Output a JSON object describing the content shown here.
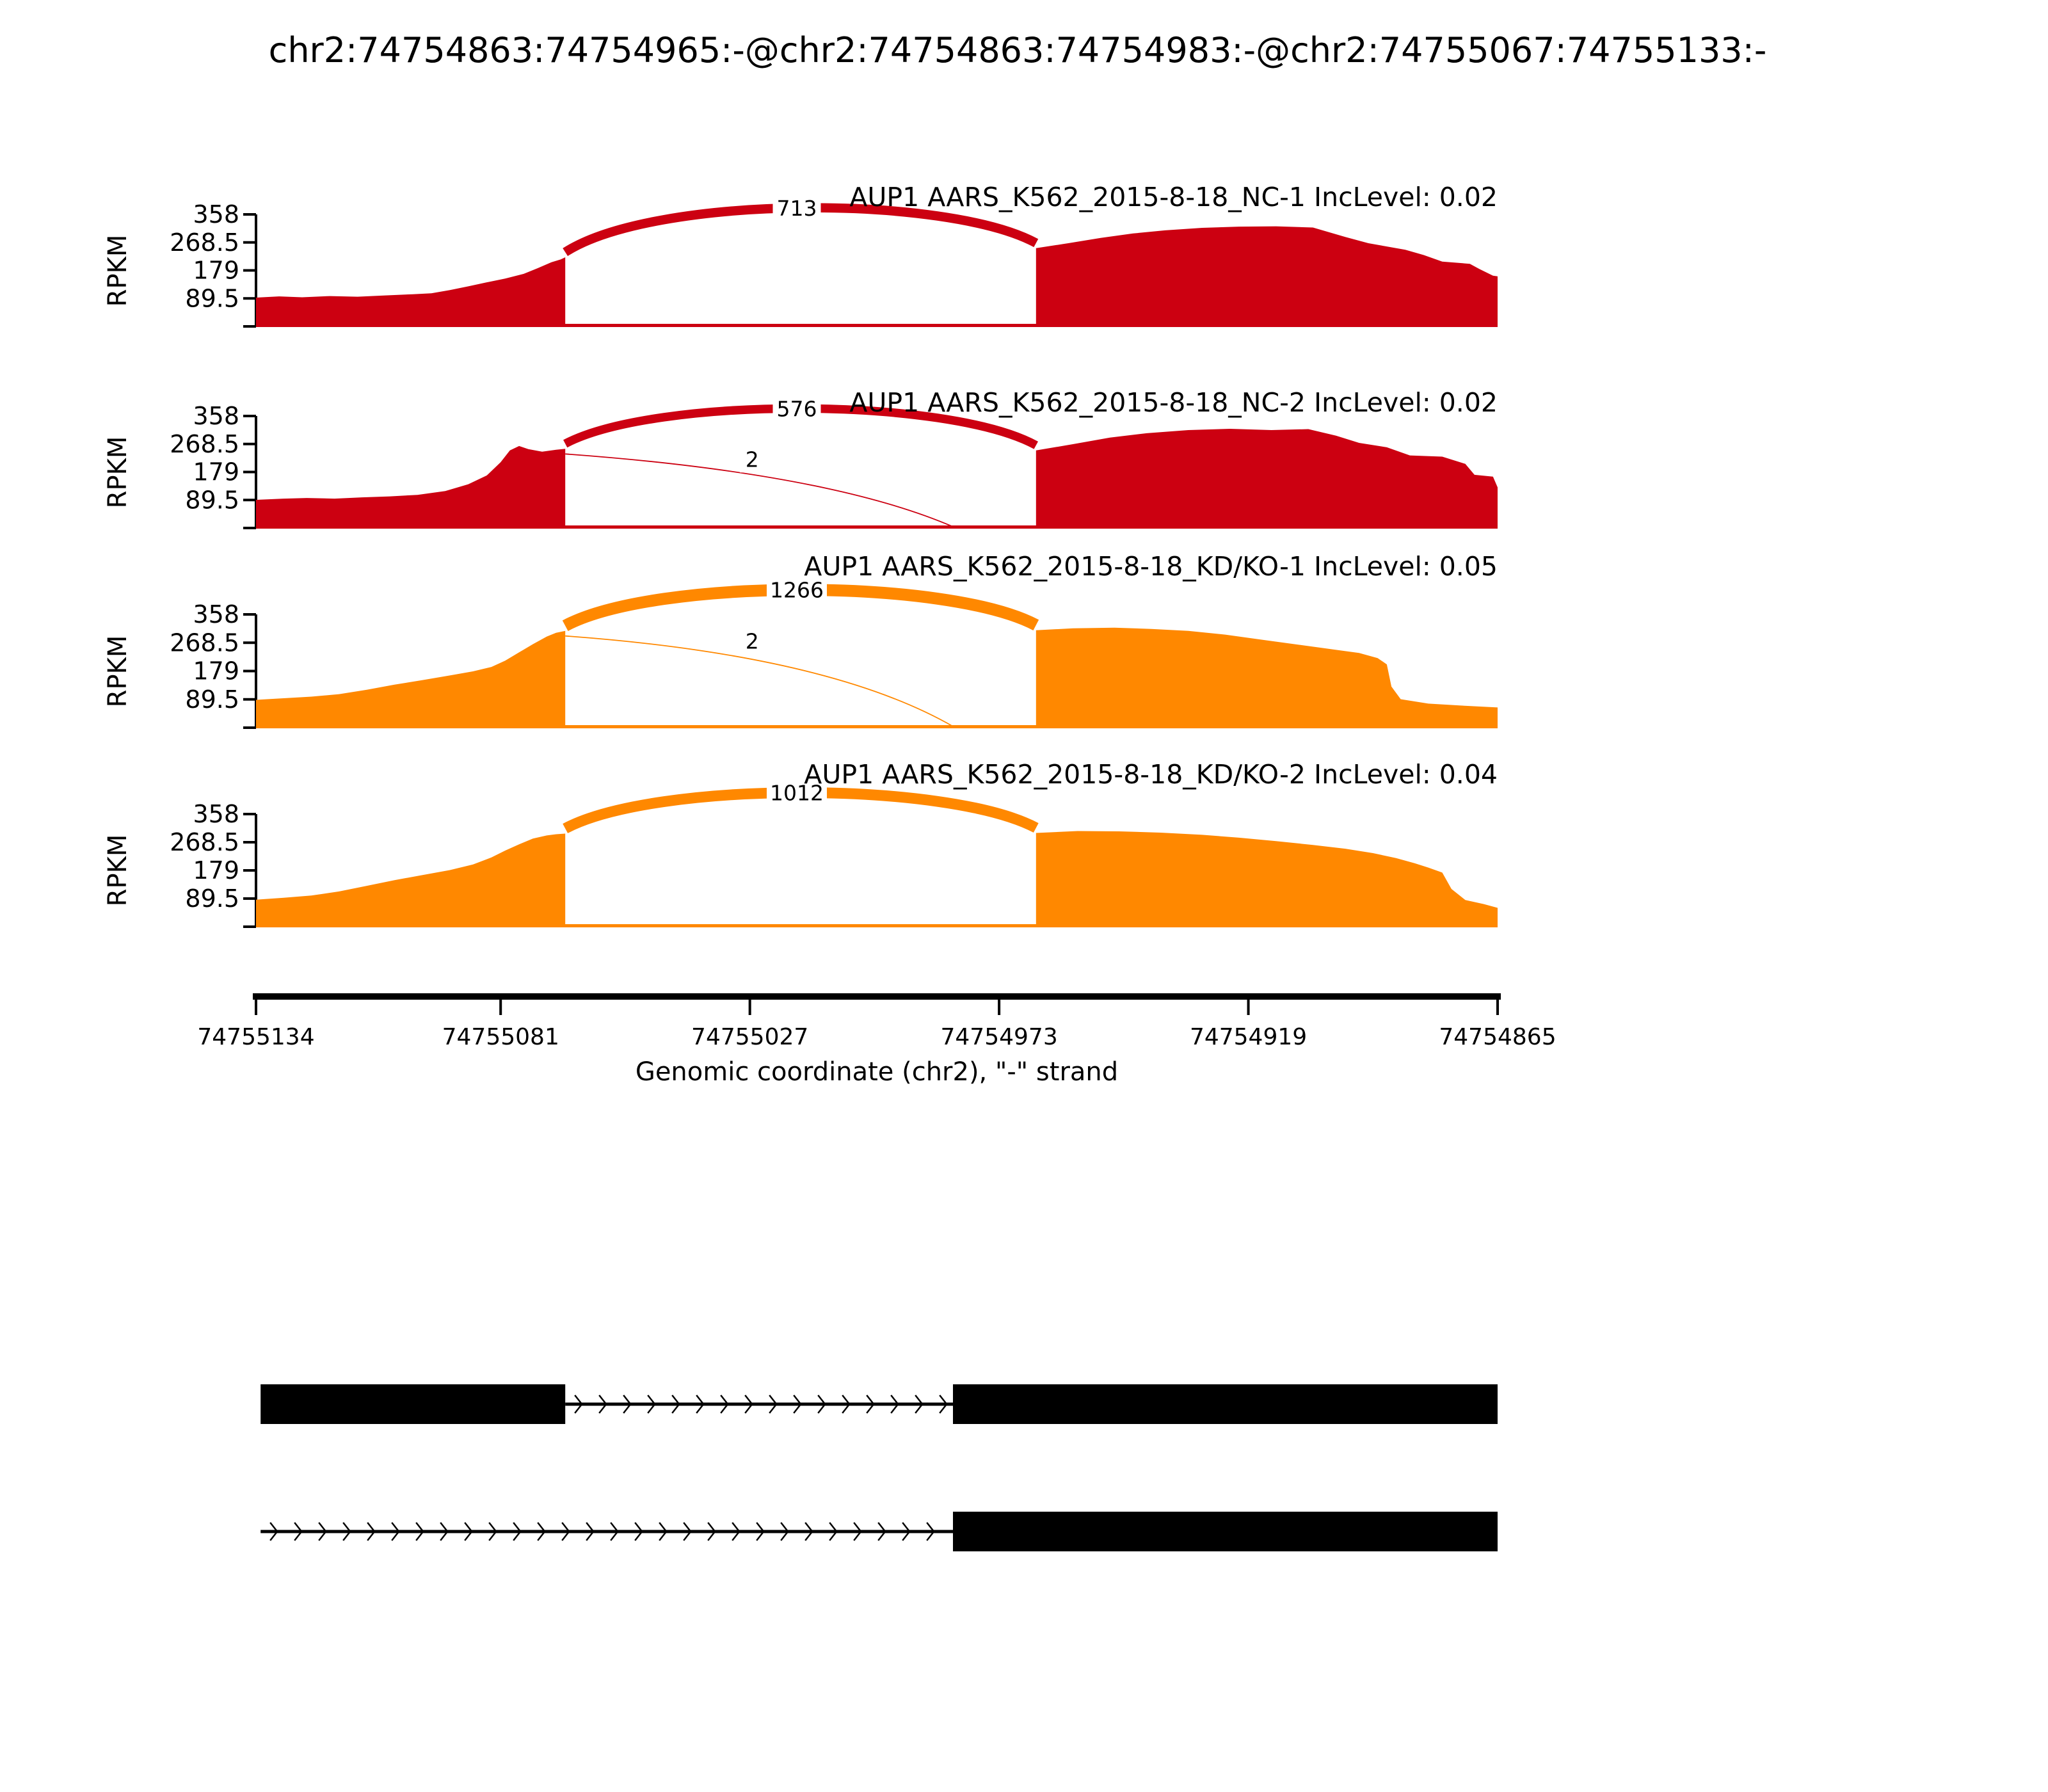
{
  "chart_data": {
    "type": "sashimi",
    "title": "chr2:74754863:74754965:-@chr2:74754863:74754983:-@chr2:74755067:74755133:-",
    "axis": {
      "xlabel": "Genomic coordinate (chr2), \"-\" strand",
      "x_ticks": [
        74755134,
        74755081,
        74755027,
        74754973,
        74754919,
        74754865
      ],
      "x_start": 74755134,
      "x_end": 74754865,
      "strand": "-",
      "ylabel": "RPKM",
      "y_ticks": [
        358,
        268.5,
        179,
        89.5
      ],
      "y_max": 358
    },
    "colors": {
      "control": "#CC0011",
      "knockdown": "#FF8800",
      "exon": "#000000"
    },
    "tracks": [
      {
        "label": "AUP1 AARS_K562_2015-8-18_NC-1 IncLevel: 0.02",
        "inc_level": "0.02",
        "color": "#CC0011",
        "coverage_left": [
          [
            74755134,
            92
          ],
          [
            74755129,
            96
          ],
          [
            74755124,
            93
          ],
          [
            74755118,
            97
          ],
          [
            74755112,
            95
          ],
          [
            74755106,
            99
          ],
          [
            74755100,
            103
          ],
          [
            74755096,
            106
          ],
          [
            74755092,
            116
          ],
          [
            74755088,
            128
          ],
          [
            74755084,
            141
          ],
          [
            74755080,
            153
          ],
          [
            74755076,
            168
          ],
          [
            74755073,
            186
          ],
          [
            74755070,
            205
          ],
          [
            74755068,
            214
          ],
          [
            74755067,
            221
          ]
        ],
        "coverage_right": [
          [
            74754965,
            250
          ],
          [
            74754958,
            266
          ],
          [
            74754951,
            283
          ],
          [
            74754944,
            297
          ],
          [
            74754937,
            307
          ],
          [
            74754929,
            315
          ],
          [
            74754921,
            319
          ],
          [
            74754913,
            320
          ],
          [
            74754905,
            316
          ],
          [
            74754898,
            286
          ],
          [
            74754893,
            266
          ],
          [
            74754885,
            245
          ],
          [
            74754881,
            228
          ],
          [
            74754877,
            207
          ],
          [
            74754871,
            200
          ],
          [
            74754869,
            184
          ],
          [
            74754866,
            162
          ],
          [
            74754865,
            160
          ]
        ],
        "junctions": [
          {
            "count": 713,
            "from": 74755067,
            "to": 74754965,
            "style": "arc"
          }
        ]
      },
      {
        "label": "AUP1 AARS_K562_2015-8-18_NC-2 IncLevel: 0.02",
        "inc_level": "0.02",
        "color": "#CC0011",
        "coverage_left": [
          [
            74755134,
            90
          ],
          [
            74755128,
            94
          ],
          [
            74755123,
            96
          ],
          [
            74755117,
            94
          ],
          [
            74755111,
            98
          ],
          [
            74755105,
            101
          ],
          [
            74755099,
            106
          ],
          [
            74755093,
            118
          ],
          [
            74755088,
            140
          ],
          [
            74755084,
            168
          ],
          [
            74755081,
            210
          ],
          [
            74755079,
            248
          ],
          [
            74755077,
            262
          ],
          [
            74755075,
            252
          ],
          [
            74755072,
            244
          ],
          [
            74755069,
            250
          ],
          [
            74755067,
            253
          ]
        ],
        "coverage_right": [
          [
            74754965,
            248
          ],
          [
            74754957,
            268
          ],
          [
            74754949,
            289
          ],
          [
            74754941,
            303
          ],
          [
            74754932,
            313
          ],
          [
            74754923,
            317
          ],
          [
            74754914,
            313
          ],
          [
            74754906,
            316
          ],
          [
            74754900,
            295
          ],
          [
            74754895,
            272
          ],
          [
            74754889,
            258
          ],
          [
            74754884,
            232
          ],
          [
            74754877,
            228
          ],
          [
            74754872,
            205
          ],
          [
            74754870,
            170
          ],
          [
            74754866,
            164
          ],
          [
            74754865,
            130
          ]
        ],
        "junctions": [
          {
            "count": 576,
            "from": 74755067,
            "to": 74754965,
            "style": "arc"
          },
          {
            "count": 2,
            "from": 74755067,
            "to": 74754983,
            "style": "drop"
          }
        ]
      },
      {
        "label": "AUP1 AARS_K562_2015-8-18_KD/KO-1 IncLevel: 0.05",
        "inc_level": "0.05",
        "color": "#FF8800",
        "coverage_left": [
          [
            74755134,
            88
          ],
          [
            74755128,
            93
          ],
          [
            74755122,
            98
          ],
          [
            74755116,
            106
          ],
          [
            74755110,
            120
          ],
          [
            74755104,
            136
          ],
          [
            74755098,
            150
          ],
          [
            74755092,
            165
          ],
          [
            74755087,
            178
          ],
          [
            74755083,
            192
          ],
          [
            74755080,
            212
          ],
          [
            74755077,
            238
          ],
          [
            74755074,
            264
          ],
          [
            74755071,
            288
          ],
          [
            74755069,
            300
          ],
          [
            74755067,
            306
          ]
        ],
        "coverage_right": [
          [
            74754965,
            308
          ],
          [
            74754957,
            314
          ],
          [
            74754948,
            316
          ],
          [
            74754940,
            312
          ],
          [
            74754932,
            306
          ],
          [
            74754924,
            294
          ],
          [
            74754916,
            278
          ],
          [
            74754908,
            262
          ],
          [
            74754901,
            248
          ],
          [
            74754895,
            236
          ],
          [
            74754891,
            220
          ],
          [
            74754889,
            200
          ],
          [
            74754888,
            130
          ],
          [
            74754886,
            90
          ],
          [
            74754880,
            76
          ],
          [
            74754873,
            70
          ],
          [
            74754865,
            64
          ]
        ],
        "junctions": [
          {
            "count": 1266,
            "from": 74755067,
            "to": 74754965,
            "style": "arc"
          },
          {
            "count": 2,
            "from": 74755067,
            "to": 74754983,
            "style": "drop"
          }
        ]
      },
      {
        "label": "AUP1 AARS_K562_2015-8-18_KD/KO-2 IncLevel: 0.04",
        "inc_level": "0.04",
        "color": "#FF8800",
        "coverage_left": [
          [
            74755134,
            86
          ],
          [
            74755128,
            92
          ],
          [
            74755122,
            99
          ],
          [
            74755116,
            112
          ],
          [
            74755110,
            130
          ],
          [
            74755104,
            148
          ],
          [
            74755098,
            164
          ],
          [
            74755092,
            180
          ],
          [
            74755087,
            198
          ],
          [
            74755083,
            220
          ],
          [
            74755080,
            242
          ],
          [
            74755077,
            262
          ],
          [
            74755074,
            280
          ],
          [
            74755071,
            290
          ],
          [
            74755069,
            294
          ],
          [
            74755067,
            296
          ]
        ],
        "coverage_right": [
          [
            74754965,
            298
          ],
          [
            74754956,
            304
          ],
          [
            74754947,
            303
          ],
          [
            74754938,
            299
          ],
          [
            74754929,
            292
          ],
          [
            74754921,
            283
          ],
          [
            74754913,
            272
          ],
          [
            74754905,
            260
          ],
          [
            74754898,
            248
          ],
          [
            74754892,
            234
          ],
          [
            74754887,
            218
          ],
          [
            74754883,
            202
          ],
          [
            74754880,
            188
          ],
          [
            74754877,
            172
          ],
          [
            74754875,
            120
          ],
          [
            74754872,
            85
          ],
          [
            74754868,
            72
          ],
          [
            74754865,
            60
          ]
        ],
        "junctions": [
          {
            "count": 1012,
            "from": 74755067,
            "to": 74754965,
            "style": "arc"
          }
        ]
      }
    ],
    "transcripts": [
      {
        "exons": [
          [
            74755133,
            74755067
          ],
          [
            74754983,
            74754865
          ]
        ],
        "introns": [
          [
            74755067,
            74754983
          ]
        ],
        "strand": "-"
      },
      {
        "exons": [
          [
            74754983,
            74754865
          ]
        ],
        "introns": [
          [
            74755133,
            74754983
          ]
        ],
        "strand": "-"
      }
    ]
  }
}
